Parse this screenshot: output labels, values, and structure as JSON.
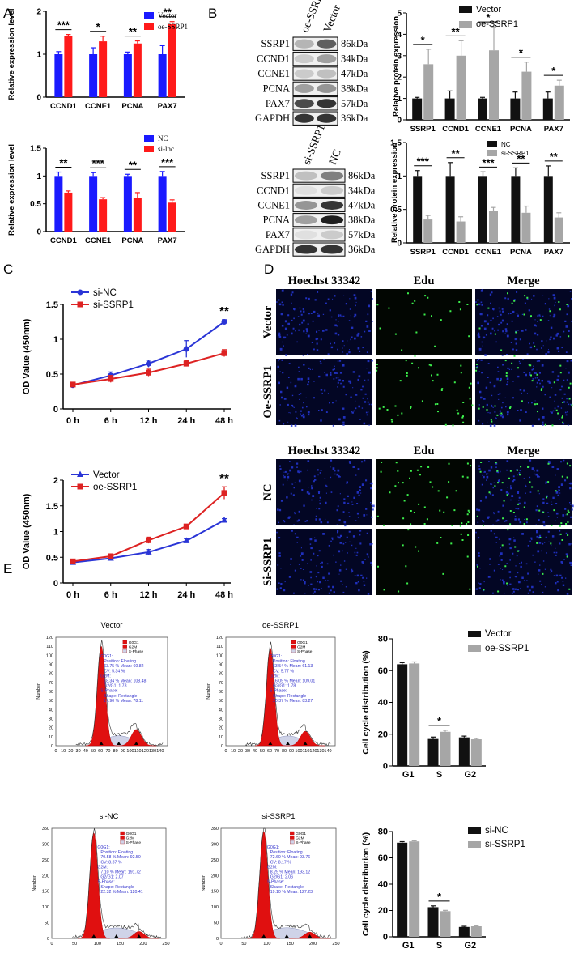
{
  "panels": {
    "A": "A",
    "B": "B",
    "C": "C",
    "D": "D",
    "E": "E"
  },
  "colors": {
    "blue": "#1a1aff",
    "red": "#ff1a1a",
    "black": "#111111",
    "gray": "#a6a6a6",
    "line_blue": "#2a35d6",
    "line_red": "#dd2222",
    "cell_blue": "#1a2ecc",
    "cell_green": "#39e84a",
    "flow_red": "#e01010",
    "flow_gray": "#cfd3e8",
    "flow_text": "#3333cc"
  },
  "chart_data": [
    {
      "id": "A1",
      "type": "bar",
      "ylabel": "Relative expression level",
      "ylim": [
        0,
        2
      ],
      "yticks": [
        0,
        1,
        2
      ],
      "categories": [
        "CCND1",
        "CCNE1",
        "PCNA",
        "PAX7"
      ],
      "series": [
        {
          "name": "Vector",
          "color": "#1a1aff",
          "values": [
            1.0,
            1.0,
            1.0,
            1.0
          ],
          "errors": [
            0.06,
            0.15,
            0.05,
            0.2
          ]
        },
        {
          "name": "oe-SSRP1",
          "color": "#ff1a1a",
          "values": [
            1.42,
            1.3,
            1.25,
            1.7
          ],
          "errors": [
            0.04,
            0.12,
            0.06,
            0.06
          ]
        }
      ],
      "significance": [
        "***",
        "*",
        "**",
        "**"
      ]
    },
    {
      "id": "A2",
      "type": "bar",
      "ylabel": "Relative expression level",
      "ylim": [
        0,
        1.5
      ],
      "yticks": [
        0,
        0.5,
        1.0,
        1.5
      ],
      "categories": [
        "CCND1",
        "CCNE1",
        "PCNA",
        "PAX7"
      ],
      "series": [
        {
          "name": "NC",
          "color": "#1a1aff",
          "values": [
            1.0,
            1.0,
            1.0,
            1.0
          ],
          "errors": [
            0.07,
            0.06,
            0.03,
            0.08
          ]
        },
        {
          "name": "si-lnc",
          "color": "#ff1a1a",
          "values": [
            0.7,
            0.58,
            0.6,
            0.52
          ],
          "errors": [
            0.03,
            0.03,
            0.1,
            0.05
          ]
        }
      ],
      "significance": [
        "**",
        "***",
        "**",
        "***"
      ]
    },
    {
      "id": "B1",
      "type": "bar",
      "ylabel": "Relative protein expression",
      "ylim": [
        0,
        5
      ],
      "yticks": [
        0,
        1,
        2,
        3,
        4,
        5
      ],
      "categories": [
        "SSRP1",
        "CCND1",
        "CCNE1",
        "PCNA",
        "PAX7"
      ],
      "series": [
        {
          "name": "Vector",
          "color": "#111111",
          "values": [
            1.0,
            1.0,
            1.0,
            1.0,
            1.0
          ],
          "errors": [
            0.05,
            0.35,
            0.05,
            0.3,
            0.3
          ]
        },
        {
          "name": "oe-SSRP1",
          "color": "#a6a6a6",
          "values": [
            2.6,
            3.0,
            3.25,
            2.25,
            1.6
          ],
          "errors": [
            0.7,
            0.7,
            1.1,
            0.45,
            0.25
          ]
        }
      ],
      "significance": [
        "*",
        "**",
        "*",
        "*",
        "*"
      ]
    },
    {
      "id": "B2",
      "type": "bar",
      "ylabel": "Relative protein expression",
      "ylim": [
        0,
        1.5
      ],
      "yticks": [
        0,
        0.5,
        1.0,
        1.5
      ],
      "categories": [
        "SSRP1",
        "CCND1",
        "CCNE1",
        "PCNA",
        "PAX7"
      ],
      "series": [
        {
          "name": "NC",
          "color": "#111111",
          "values": [
            1.0,
            1.0,
            1.0,
            1.0,
            1.0
          ],
          "errors": [
            0.08,
            0.2,
            0.06,
            0.12,
            0.15
          ]
        },
        {
          "name": "si-SSRP1",
          "color": "#a6a6a6",
          "values": [
            0.35,
            0.32,
            0.48,
            0.45,
            0.38
          ],
          "errors": [
            0.06,
            0.07,
            0.05,
            0.1,
            0.07
          ]
        }
      ],
      "significance": [
        "***",
        "**",
        "***",
        "**",
        "**"
      ]
    },
    {
      "id": "C1",
      "type": "line",
      "ylabel": "OD Value (450nm)",
      "ylim": [
        0,
        1.5
      ],
      "yticks": [
        0,
        0.5,
        1.0,
        1.5
      ],
      "x": [
        "0 h",
        "6 h",
        "12 h",
        "24 h",
        "48 h"
      ],
      "series": [
        {
          "name": "si-NC",
          "color": "#2a35d6",
          "marker": "circle",
          "values": [
            0.34,
            0.48,
            0.65,
            0.86,
            1.25
          ],
          "errors": [
            0.03,
            0.05,
            0.05,
            0.12,
            0.03
          ]
        },
        {
          "name": "si-SSRP1",
          "color": "#dd2222",
          "marker": "square",
          "values": [
            0.35,
            0.43,
            0.52,
            0.65,
            0.8
          ],
          "errors": [
            0.03,
            0.05,
            0.05,
            0.04,
            0.05
          ]
        }
      ],
      "annotation": "**"
    },
    {
      "id": "C2",
      "type": "line",
      "ylabel": "OD Value (450nm)",
      "ylim": [
        0,
        2.0
      ],
      "yticks": [
        0,
        0.5,
        1.0,
        1.5,
        2.0
      ],
      "x": [
        "0 h",
        "6 h",
        "12 h",
        "24 h",
        "48 h"
      ],
      "series": [
        {
          "name": "Vector",
          "color": "#2a35d6",
          "marker": "triangle",
          "values": [
            0.4,
            0.48,
            0.6,
            0.82,
            1.22
          ],
          "errors": [
            0.02,
            0.03,
            0.05,
            0.04,
            0.03
          ]
        },
        {
          "name": "oe-SSRP1",
          "color": "#dd2222",
          "marker": "square",
          "values": [
            0.42,
            0.52,
            0.83,
            1.1,
            1.75
          ],
          "errors": [
            0.02,
            0.03,
            0.06,
            0.03,
            0.12
          ]
        }
      ],
      "annotation": "**"
    },
    {
      "id": "E1",
      "type": "bar",
      "ylabel": "Cell cycle distribution (%)",
      "ylim": [
        0,
        80
      ],
      "yticks": [
        0,
        20,
        40,
        60,
        80
      ],
      "categories": [
        "G1",
        "S",
        "G2"
      ],
      "series": [
        {
          "name": "Vector",
          "color": "#111111",
          "values": [
            64,
            17,
            18
          ],
          "errors": [
            1,
            1.2,
            0.8
          ]
        },
        {
          "name": "oe-SSRP1",
          "color": "#a6a6a6",
          "values": [
            64.5,
            21.5,
            16.8
          ],
          "errors": [
            1,
            1,
            0.5
          ]
        }
      ],
      "significance": [
        "",
        "*",
        ""
      ]
    },
    {
      "id": "E2",
      "type": "bar",
      "ylabel": "Cell cycle distribution (%)",
      "ylim": [
        0,
        80
      ],
      "yticks": [
        0,
        20,
        40,
        60,
        80
      ],
      "categories": [
        "G1",
        "S",
        "G2"
      ],
      "series": [
        {
          "name": "si-NC",
          "color": "#111111",
          "values": [
            71.5,
            22.5,
            7.5
          ],
          "errors": [
            0.8,
            1,
            0.5
          ]
        },
        {
          "name": "si-SSRP1",
          "color": "#a6a6a6",
          "values": [
            72.5,
            19.5,
            8
          ],
          "errors": [
            0.5,
            0.6,
            0.4
          ]
        }
      ],
      "significance": [
        "",
        "*",
        ""
      ]
    }
  ],
  "blots": [
    {
      "id": "B1",
      "lanes": [
        "oe-SSRP1",
        "Vector"
      ],
      "rows": [
        {
          "protein": "SSRP1",
          "size": "86kDa",
          "bands": [
            0.25,
            0.65
          ]
        },
        {
          "protein": "CCND1",
          "size": "34kDa",
          "bands": [
            0.15,
            0.35
          ]
        },
        {
          "protein": "CCNE1",
          "size": "47kDa",
          "bands": [
            0.15,
            0.2
          ]
        },
        {
          "protein": "PCNA",
          "size": "38kDa",
          "bands": [
            0.35,
            0.4
          ]
        },
        {
          "protein": "PAX7",
          "size": "57kDa",
          "bands": [
            0.75,
            0.85
          ]
        },
        {
          "protein": "GAPDH",
          "size": "36kDa",
          "bands": [
            0.85,
            0.85
          ]
        }
      ]
    },
    {
      "id": "B2",
      "lanes": [
        "si-SSRP1",
        "NC"
      ],
      "rows": [
        {
          "protein": "SSRP1",
          "size": "86kDa",
          "bands": [
            0.2,
            0.5
          ]
        },
        {
          "protein": "CCND1",
          "size": "34kDa",
          "bands": [
            0.05,
            0.15
          ]
        },
        {
          "protein": "CCNE1",
          "size": "47kDa",
          "bands": [
            0.4,
            0.85
          ]
        },
        {
          "protein": "PCNA",
          "size": "38kDa",
          "bands": [
            0.35,
            0.95
          ]
        },
        {
          "protein": "PAX7",
          "size": "57kDa",
          "bands": [
            0.05,
            0.15
          ]
        },
        {
          "protein": "GAPDH",
          "size": "36kDa",
          "bands": [
            0.85,
            0.85
          ]
        }
      ]
    }
  ],
  "microscopy": [
    {
      "columns": [
        "Hoechst 33342",
        "Edu",
        "Merge"
      ],
      "rows": [
        "Vector",
        "Oe-SSRP1"
      ],
      "edu_density": [
        0.35,
        0.75
      ]
    },
    {
      "columns": [
        "Hoechst 33342",
        "Edu",
        "Merge"
      ],
      "rows": [
        "NC",
        "Si-SSRP1"
      ],
      "edu_density": [
        0.8,
        0.3
      ]
    }
  ],
  "flow": [
    {
      "title": "Vector",
      "ylabel": "Number",
      "ymax": 120,
      "yticks": [
        0,
        10,
        20,
        30,
        40,
        50,
        60,
        70,
        80,
        90,
        100,
        110,
        120
      ],
      "xmax": 150,
      "xticks": [
        0,
        10,
        20,
        30,
        40,
        50,
        60,
        70,
        80,
        90,
        100,
        110,
        120,
        130,
        140
      ],
      "g1_pos": 61,
      "g1_peak": 110,
      "g2_pos": 108,
      "g2_peak": 18,
      "legend": [
        "G0G1",
        "G2M",
        "S-Phase"
      ],
      "stats": [
        "G0G1:",
        "Position: Floating",
        "63.75 %     Mean: 60.82",
        "CV: 5.34 %",
        "G2M:",
        "18.34 %     Mean: 108.48",
        "G2/G1: 1.78",
        "S-Phase:",
        "Shape: Rectangle",
        "17.90 %     Mean: 78.11"
      ]
    },
    {
      "title": "oe-SSRP1",
      "ylabel": "Number",
      "ymax": 120,
      "yticks": [
        0,
        10,
        20,
        30,
        40,
        50,
        60,
        70,
        80,
        90,
        100,
        110,
        120
      ],
      "xmax": 150,
      "xticks": [
        0,
        10,
        20,
        30,
        40,
        50,
        60,
        70,
        80,
        90,
        100,
        110,
        120,
        130,
        140
      ],
      "g1_pos": 61,
      "g1_peak": 108,
      "g2_pos": 109,
      "g2_peak": 16,
      "legend": [
        "G0G1",
        "G2M",
        "S-Phase"
      ],
      "stats": [
        "G0G1:",
        "Position: Floating",
        "63.54 %     Mean: 61.13",
        "CV: 5.77 %",
        "G2M:",
        "16.09 %     Mean: 109.01",
        "G2/G1: 1.78",
        "S-Phase:",
        "Shape: Rectangle",
        "20.37 %     Mean: 83.27"
      ]
    },
    {
      "title": "si-NC",
      "ylabel": "Number",
      "ymax": 350,
      "yticks": [
        0,
        50,
        100,
        150,
        200,
        250,
        300,
        350
      ],
      "xmax": 250,
      "xticks": [
        0,
        50,
        100,
        150,
        200,
        250
      ],
      "g1_pos": 92,
      "g1_peak": 335,
      "g2_pos": 191,
      "g2_peak": 22,
      "legend": [
        "G0G1",
        "G2M",
        "S-Phase"
      ],
      "stats": [
        "G0G1:",
        "Position: Floating",
        "70.58 %     Mean: 92.50",
        "CV: 8.37 %",
        "G2M:",
        "7.10 %     Mean: 191.72",
        "G2/G1: 2.07",
        "S-Phase:",
        "Shape: Rectangle",
        "22.32 %     Mean: 120.41"
      ]
    },
    {
      "title": "si-SSRP1",
      "ylabel": "Number",
      "ymax": 350,
      "yticks": [
        0,
        50,
        100,
        150,
        200,
        250,
        300,
        350
      ],
      "xmax": 250,
      "xticks": [
        0,
        50,
        100,
        150,
        200,
        250
      ],
      "g1_pos": 93,
      "g1_peak": 340,
      "g2_pos": 193,
      "g2_peak": 20,
      "legend": [
        "G0G1",
        "G2M",
        "S-Phase"
      ],
      "stats": [
        "G0G1:",
        "Position: Floating",
        "72.60 %     Mean: 93.76",
        "CV: 8.17 %",
        "G2M:",
        "8.29 %     Mean: 193.12",
        "G2/G1: 2.06",
        "S-Phase:",
        "Shape: Rectangle",
        "19.10 %     Mean: 127.23"
      ]
    }
  ]
}
